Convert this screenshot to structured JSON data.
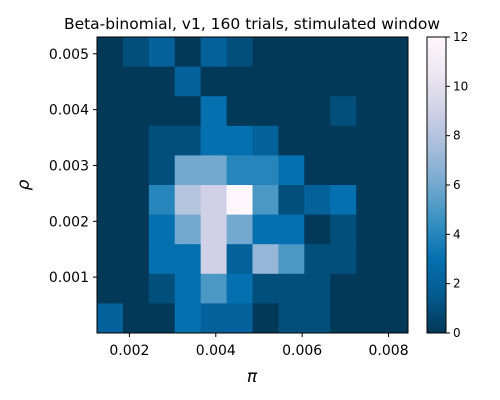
{
  "chart_data": {
    "type": "heatmap",
    "title": "Beta-binomial, v1, 160 trials, stimulated window",
    "xlabel": "π",
    "ylabel": "ρ",
    "x_edges": [
      0.00125,
      0.00155,
      0.00185,
      0.00215,
      0.00245,
      0.00275,
      0.00305,
      0.00335,
      0.00365,
      0.00395,
      0.00425,
      0.00455,
      0.00485,
      0.00515,
      0.00545,
      0.00575,
      0.00605,
      0.00635,
      0.00665,
      0.00695,
      0.00725,
      0.00755,
      0.00785,
      0.00815,
      0.00845
    ],
    "y_edges": [
      0.0,
      0.00053,
      0.00106,
      0.00159,
      0.00212,
      0.00265,
      0.00318,
      0.00371,
      0.00424,
      0.00477,
      0.0053
    ],
    "xlim": [
      0.00125,
      0.00845
    ],
    "ylim": [
      0.0,
      0.0053
    ],
    "xticks": [
      {
        "value": 0.002,
        "label": "0.002"
      },
      {
        "value": 0.004,
        "label": "0.004"
      },
      {
        "value": 0.006,
        "label": "0.006"
      },
      {
        "value": 0.008,
        "label": "0.008"
      }
    ],
    "yticks": [
      {
        "value": 0.001,
        "label": "0.001"
      },
      {
        "value": 0.002,
        "label": "0.002"
      },
      {
        "value": 0.003,
        "label": "0.003"
      },
      {
        "value": 0.004,
        "label": "0.004"
      },
      {
        "value": 0.005,
        "label": "0.005"
      }
    ],
    "colorbar": {
      "min": 0,
      "max": 12,
      "ticks": [
        {
          "value": 0,
          "label": "0"
        },
        {
          "value": 2,
          "label": "2"
        },
        {
          "value": 4,
          "label": "4"
        },
        {
          "value": 6,
          "label": "6"
        },
        {
          "value": 8,
          "label": "8"
        },
        {
          "value": 10,
          "label": "10"
        },
        {
          "value": 12,
          "label": "12"
        }
      ],
      "colormap": "PuBu_r",
      "stops": [
        "#023858",
        "#045a8d",
        "#0570b0",
        "#3690c0",
        "#74a9cf",
        "#a6bddb",
        "#d0d1e6",
        "#ece7f2",
        "#fff7fb"
      ]
    },
    "z_rows_top_to_bottom": [
      [
        0,
        0,
        1,
        1,
        2,
        2,
        0,
        0,
        2,
        2,
        1,
        1,
        0,
        0,
        0,
        0,
        0,
        0,
        0,
        0,
        0,
        0,
        0,
        0
      ],
      [
        0,
        0,
        0,
        0,
        0,
        0,
        2,
        2,
        0,
        0,
        0,
        0,
        0,
        0,
        0,
        0,
        0,
        0,
        0,
        0,
        0,
        0,
        0,
        0
      ],
      [
        0,
        0,
        0,
        0,
        0,
        0,
        0,
        0,
        3,
        3,
        0,
        0,
        0,
        0,
        0,
        0,
        0,
        0,
        1,
        1,
        0,
        0,
        0,
        0
      ],
      [
        0,
        0,
        0,
        0,
        1,
        1,
        1,
        1,
        3,
        3,
        3,
        3,
        2,
        2,
        0,
        0,
        0,
        0,
        0,
        0,
        0,
        0,
        0,
        0
      ],
      [
        0,
        0,
        0,
        0,
        1,
        1,
        6,
        6,
        6,
        6,
        4,
        4,
        4,
        4,
        3,
        3,
        0,
        0,
        0,
        0,
        0,
        0,
        0,
        0
      ],
      [
        0,
        0,
        0,
        0,
        4,
        4,
        8,
        8,
        9,
        9,
        12,
        12,
        5,
        5,
        1,
        1,
        2,
        2,
        3,
        3,
        0,
        0,
        0,
        0
      ],
      [
        0,
        0,
        0,
        0,
        3,
        3,
        6,
        6,
        9,
        9,
        6,
        6,
        3,
        3,
        3,
        3,
        0,
        0,
        1,
        1,
        0,
        0,
        0,
        0
      ],
      [
        0,
        0,
        0,
        0,
        3,
        3,
        3,
        3,
        9,
        9,
        2,
        2,
        7,
        7,
        5,
        5,
        1,
        1,
        1,
        1,
        0,
        0,
        0,
        0
      ],
      [
        0,
        0,
        0,
        0,
        1,
        1,
        3,
        3,
        5,
        5,
        3,
        3,
        1,
        1,
        1,
        1,
        1,
        1,
        0,
        0,
        0,
        0,
        0,
        0
      ],
      [
        2,
        2,
        0,
        0,
        0,
        0,
        3,
        3,
        2,
        2,
        2,
        2,
        0,
        0,
        1,
        1,
        1,
        1,
        0,
        0,
        0,
        0,
        0,
        0
      ]
    ]
  }
}
